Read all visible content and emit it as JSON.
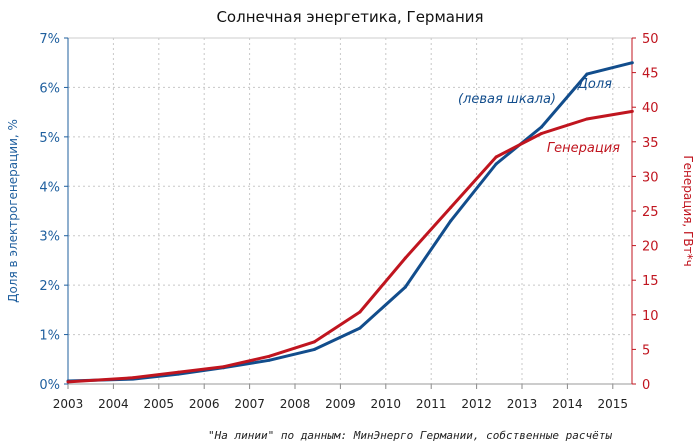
{
  "chart_data": {
    "type": "line",
    "title": "Солнечная энергетика, Германия",
    "ylabel_left": "Доля в электрогенерации, %",
    "ylabel_right": "Генерация, ГВт*ч",
    "x_ticks": [
      "2003",
      "2004",
      "2005",
      "2006",
      "2007",
      "2008",
      "2009",
      "2010",
      "2011",
      "2012",
      "2013",
      "2014",
      "2015"
    ],
    "xlim": [
      2003,
      2015.43
    ],
    "ylim_left": [
      0,
      7
    ],
    "ylim_right": [
      0,
      50
    ],
    "y_ticks_left": [
      "0%",
      "1%",
      "2%",
      "3%",
      "4%",
      "5%",
      "6%",
      "7%"
    ],
    "y_ticks_right": [
      "0",
      "5",
      "10",
      "15",
      "20",
      "25",
      "30",
      "35",
      "40",
      "45",
      "50"
    ],
    "grid": true,
    "x": [
      2003.0,
      2004.43,
      2005.43,
      2006.43,
      2007.43,
      2008.43,
      2009.43,
      2010.43,
      2011.43,
      2012.43,
      2013.43,
      2014.43,
      2015.43
    ],
    "series": [
      {
        "name": "Доля",
        "axis": "left",
        "color": "#124d8c",
        "values": [
          0.06,
          0.1,
          0.2,
          0.33,
          0.48,
          0.7,
          1.13,
          1.96,
          3.3,
          4.45,
          5.2,
          6.27,
          6.5
        ]
      },
      {
        "name": "Генерация",
        "axis": "right",
        "color": "#c0151f",
        "values": [
          0.3,
          0.9,
          1.7,
          2.5,
          4.0,
          6.1,
          10.4,
          18.2,
          25.5,
          32.8,
          36.2,
          38.3,
          39.4
        ]
      }
    ],
    "annotations": {
      "share_line1": "Доля",
      "share_line2": "(левая шкала)",
      "generation": "Генерация"
    },
    "source": "\"На линии\" по данным: МинЭнерго Германии, собственные расчёты"
  },
  "colors": {
    "left_axis": "#1f5f9e",
    "right_axis": "#c0151f",
    "grid": "#c8c8c8"
  }
}
